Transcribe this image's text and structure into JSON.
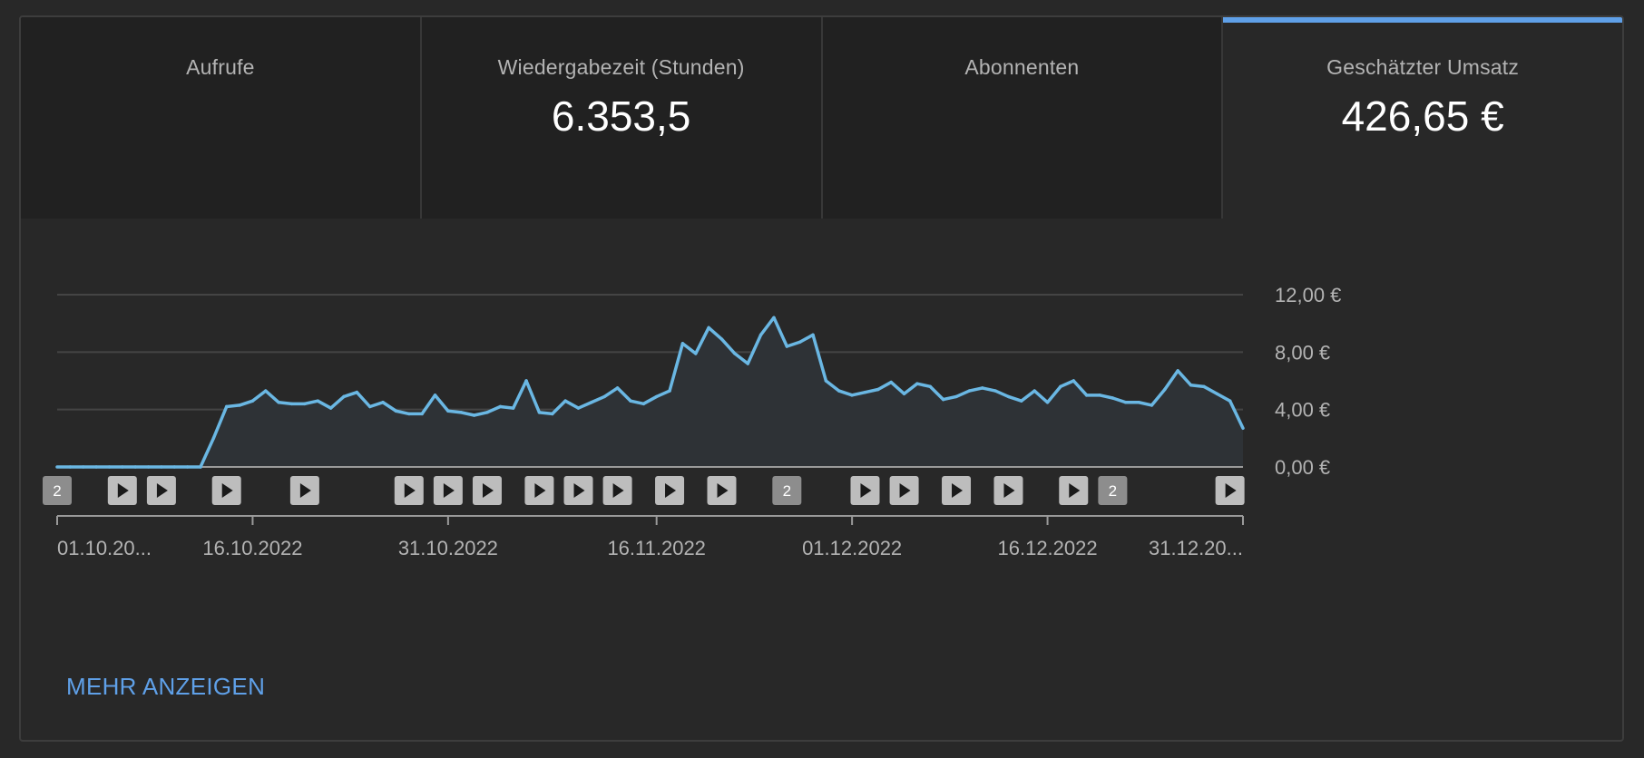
{
  "tabs": [
    {
      "label": "Aufrufe",
      "value": "",
      "selected": false
    },
    {
      "label": "Wiedergabezeit (Stunden)",
      "value": "6.353,5",
      "selected": false
    },
    {
      "label": "Abonnenten",
      "value": "",
      "selected": false
    },
    {
      "label": "Geschätzter Umsatz",
      "value": "426,65 €",
      "selected": true
    }
  ],
  "more_link": "MEHR ANZEIGEN",
  "colors": {
    "line": "#6ab7e3",
    "accent": "#5fa0e8",
    "area": "#2e3236"
  },
  "markers": [
    {
      "type": "number",
      "label": "2",
      "day": 0
    },
    {
      "type": "play",
      "day": 5
    },
    {
      "type": "play",
      "day": 8
    },
    {
      "type": "play",
      "day": 13
    },
    {
      "type": "play",
      "day": 19
    },
    {
      "type": "play",
      "day": 27
    },
    {
      "type": "play",
      "day": 30
    },
    {
      "type": "play",
      "day": 33
    },
    {
      "type": "play",
      "day": 37
    },
    {
      "type": "play",
      "day": 40
    },
    {
      "type": "play",
      "day": 43
    },
    {
      "type": "play",
      "day": 47
    },
    {
      "type": "play",
      "day": 51
    },
    {
      "type": "number",
      "label": "2",
      "day": 56
    },
    {
      "type": "play",
      "day": 62
    },
    {
      "type": "play",
      "day": 65
    },
    {
      "type": "play",
      "day": 69
    },
    {
      "type": "play",
      "day": 73
    },
    {
      "type": "play",
      "day": 78
    },
    {
      "type": "number",
      "label": "2",
      "day": 81
    },
    {
      "type": "play",
      "day": 90
    }
  ],
  "chart_data": {
    "type": "area",
    "x_start": "01.10.2022",
    "x_end": "31.12.2022",
    "x_ticks": [
      {
        "label": "01.10.20...",
        "day": 0
      },
      {
        "label": "16.10.2022",
        "day": 15
      },
      {
        "label": "31.10.2022",
        "day": 30
      },
      {
        "label": "16.11.2022",
        "day": 46
      },
      {
        "label": "01.12.2022",
        "day": 61
      },
      {
        "label": "16.12.2022",
        "day": 76
      },
      {
        "label": "31.12.20...",
        "day": 91
      }
    ],
    "y_ticks": [
      {
        "label": "0,00 €",
        "value": 0
      },
      {
        "label": "4,00 €",
        "value": 4
      },
      {
        "label": "8,00 €",
        "value": 8
      },
      {
        "label": "12,00 €",
        "value": 12
      }
    ],
    "ylim": [
      0,
      12
    ],
    "grid": true,
    "series": [
      {
        "values": [
          0,
          0,
          0,
          0,
          0,
          0,
          0,
          0,
          0,
          0,
          0,
          0,
          2.0,
          4.2,
          4.3,
          4.6,
          5.3,
          4.5,
          4.4,
          4.4,
          4.6,
          4.1,
          4.9,
          5.2,
          4.2,
          4.5,
          3.9,
          3.7,
          3.7,
          5.0,
          3.9,
          3.8,
          3.6,
          3.8,
          4.2,
          4.1,
          6.0,
          3.8,
          3.7,
          4.6,
          4.1,
          4.5,
          4.9,
          5.5,
          4.6,
          4.4,
          4.9,
          5.3,
          8.6,
          7.9,
          9.7,
          8.9,
          7.9,
          7.2,
          9.2,
          10.4,
          8.4,
          8.7,
          9.2,
          6.0,
          5.3,
          5.0,
          5.2,
          5.4,
          5.9,
          5.1,
          5.8,
          5.6,
          4.7,
          4.9,
          5.3,
          5.5,
          5.3,
          4.9,
          4.6,
          5.3,
          4.5,
          5.6,
          6.0,
          5.0,
          5.0,
          4.8,
          4.5,
          4.5,
          4.3,
          5.4,
          6.7,
          5.7,
          5.6,
          5.1,
          4.6,
          2.7
        ]
      }
    ]
  }
}
